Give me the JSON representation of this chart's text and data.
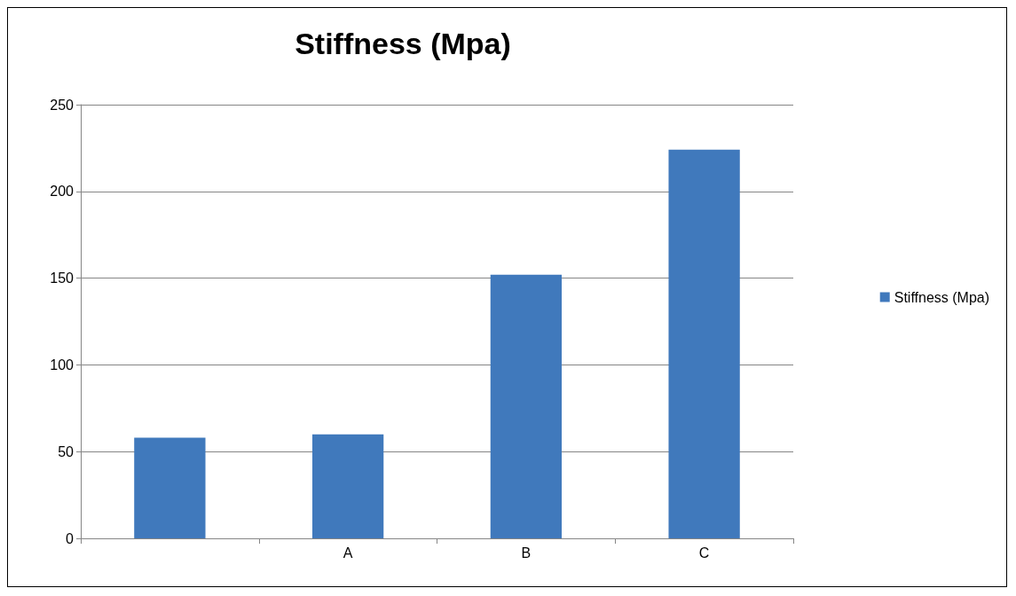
{
  "chart_data": {
    "type": "bar",
    "title": "Stiffness (Mpa)",
    "categories": [
      null,
      "A",
      "B",
      "C"
    ],
    "series": [
      {
        "name": "Stiffness (Mpa)",
        "color": "#4079bc",
        "values": [
          58,
          60,
          152,
          224
        ]
      }
    ],
    "ylim": [
      0,
      250
    ],
    "yticks": [
      0,
      50,
      100,
      150,
      200,
      250
    ],
    "grid": "y",
    "legend": "right"
  }
}
